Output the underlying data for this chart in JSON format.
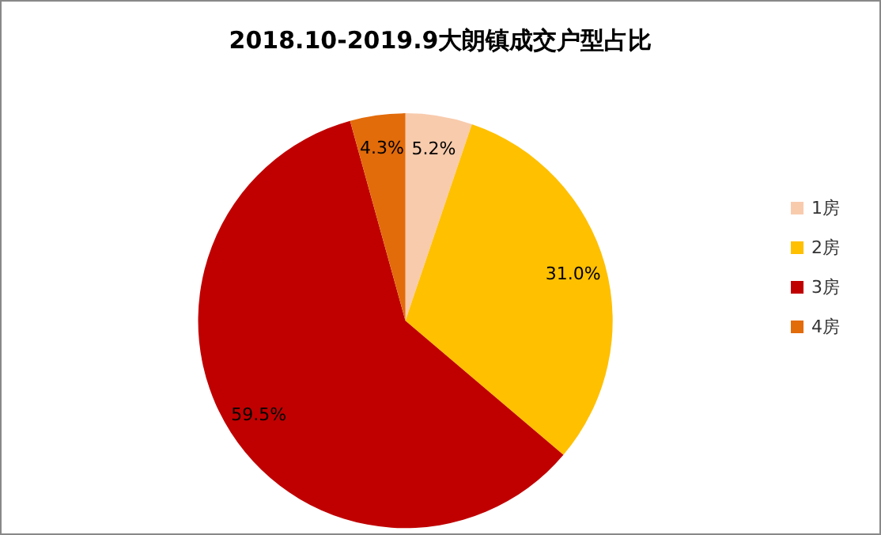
{
  "chart_data": {
    "type": "pie",
    "title": "2018.10-2019.9大朗镇成交户型占比",
    "categories": [
      "1房",
      "2房",
      "3房",
      "4房"
    ],
    "values": [
      5.2,
      31.0,
      59.5,
      4.3
    ],
    "value_labels": [
      "5.2%",
      "31.0%",
      "59.5%",
      "4.3%"
    ],
    "colors": [
      "#f8cbad",
      "#ffc000",
      "#c00000",
      "#e26b0a"
    ],
    "legend": "right"
  }
}
